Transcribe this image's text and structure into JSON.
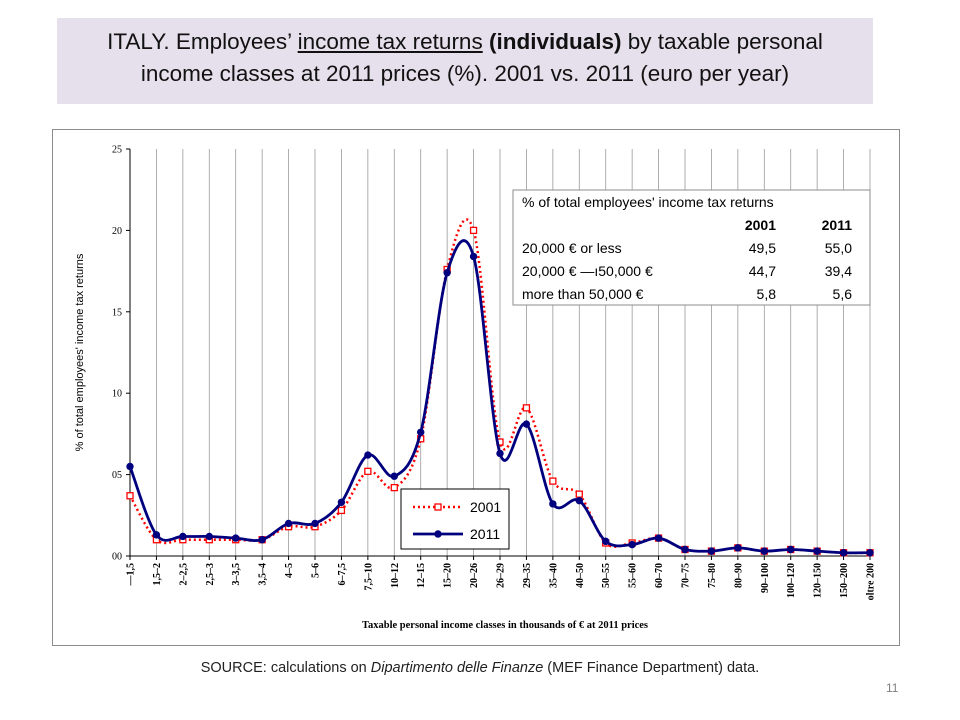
{
  "slide": {
    "title_line1_a": "ITALY. Employees’",
    "title_line1_b": "income tax returns",
    "title_line1_c": "(individuals)",
    "title_line1_d": "by  taxable personal",
    "title_line2": "income classes at 2011 prices (%). 2001 vs. 2011  (euro per year)",
    "source_a": "SOURCE: calculations on ",
    "source_b": "Dipartimento delle Finanze",
    "source_c": " (MEF Finance Department) data.",
    "page_number": "11"
  },
  "chart_data": {
    "type": "line",
    "xlabel": "Taxable personal income classes in thousands of € at  2011 prices",
    "ylabel": "% of total employees' income tax returns",
    "ylim": [
      0,
      25
    ],
    "yticks": [
      "00",
      "05",
      "10",
      "15",
      "20",
      "25"
    ],
    "grid": "vertical gridlines",
    "categories": [
      "—1,5",
      "1,5–2",
      "2–2,5",
      "2,5–3",
      "3–3,5",
      "3,5–4",
      "4–5",
      "5–6",
      "6–7,5",
      "7,5–10",
      "10–12",
      "12–15",
      "15–20",
      "20–26",
      "26–29",
      "29–35",
      "35–40",
      "40–50",
      "50–55",
      "55–60",
      "60–70",
      "70–75",
      "75–80",
      "80–90",
      "90–100",
      "100–120",
      "120–150",
      "150–200",
      "oltre 200"
    ],
    "series": [
      {
        "name": "2001",
        "color": "#ff0000",
        "style": "dotted-square",
        "values": [
          3.7,
          1.0,
          1.0,
          1.0,
          1.0,
          1.0,
          1.8,
          1.8,
          2.8,
          5.2,
          4.2,
          7.2,
          17.6,
          20.0,
          7.0,
          9.1,
          4.6,
          3.8,
          0.8,
          0.8,
          1.1,
          0.4,
          0.3,
          0.5,
          0.3,
          0.4,
          0.3,
          0.2,
          0.2
        ]
      },
      {
        "name": "2011",
        "color": "#00007f",
        "style": "solid-circle",
        "values": [
          5.5,
          1.3,
          1.2,
          1.2,
          1.1,
          1.0,
          2.0,
          2.0,
          3.3,
          6.2,
          4.9,
          7.6,
          17.4,
          18.4,
          6.3,
          8.1,
          3.2,
          3.4,
          0.9,
          0.7,
          1.1,
          0.4,
          0.3,
          0.5,
          0.3,
          0.4,
          0.3,
          0.2,
          0.2
        ]
      }
    ],
    "legend": {
      "placement": "bottom-right",
      "items": [
        "2001",
        "2011"
      ]
    },
    "inset_table": {
      "title": "% of total  employees' income tax returns",
      "headers": [
        "",
        "2001",
        "2011"
      ],
      "rows": [
        [
          "20,000 € or less",
          "49,5",
          "55,0"
        ],
        [
          "20,000 € —ı50,000 €",
          "44,7",
          "39,4"
        ],
        [
          "more than 50,000 €",
          "5,8",
          "5,6"
        ]
      ]
    }
  }
}
